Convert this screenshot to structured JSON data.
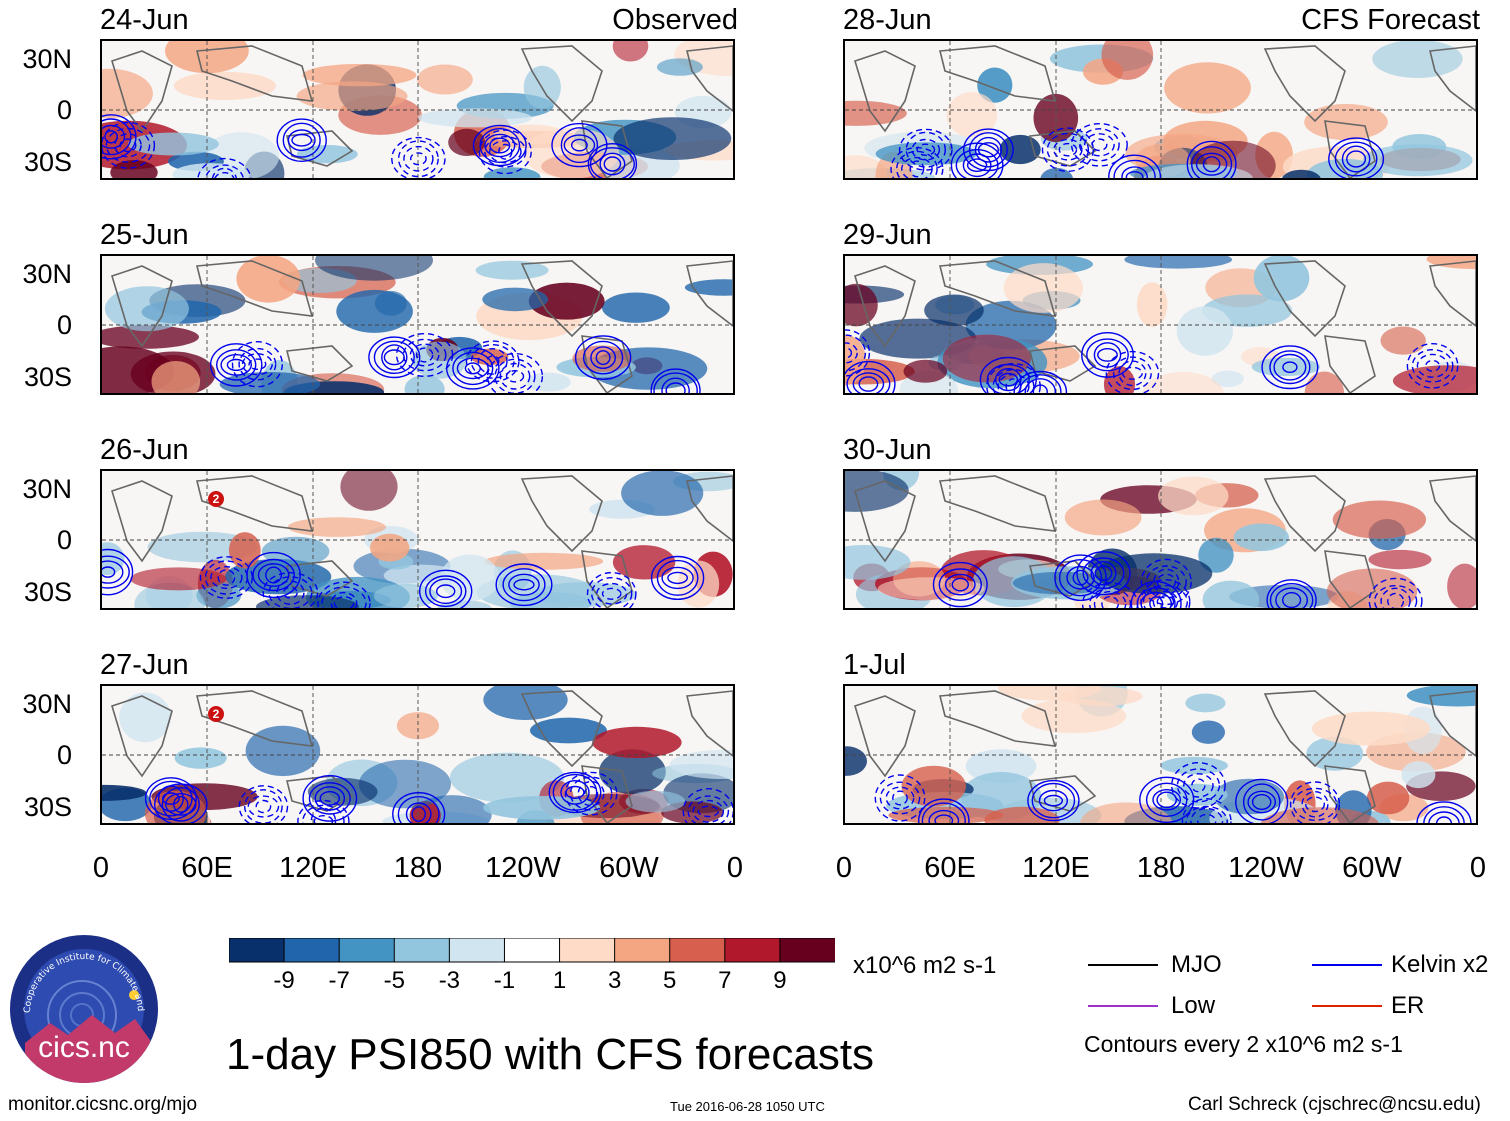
{
  "headers": {
    "observed": "Observed",
    "forecast": "CFS Forecast"
  },
  "panels": [
    {
      "date": "24-Jun"
    },
    {
      "date": "25-Jun"
    },
    {
      "date": "26-Jun"
    },
    {
      "date": "27-Jun"
    },
    {
      "date": "28-Jun"
    },
    {
      "date": "29-Jun"
    },
    {
      "date": "30-Jun"
    },
    {
      "date": "1-Jul"
    }
  ],
  "lat_labels": [
    "30N",
    "0",
    "30S"
  ],
  "lon_labels": [
    "0",
    "60E",
    "120E",
    "180",
    "120W",
    "60W",
    "0"
  ],
  "colorbar": {
    "colors": [
      "#08306b",
      "#2166ac",
      "#4393c3",
      "#92c5de",
      "#d1e5f0",
      "#ffffff",
      "#fddbc7",
      "#f4a582",
      "#d6604d",
      "#b2182b",
      "#67001f"
    ],
    "labels": [
      "-9",
      "-7",
      "-5",
      "-3",
      "-1",
      "1",
      "3",
      "5",
      "7",
      "9"
    ],
    "units": "x10^6 m2 s-1"
  },
  "legend": {
    "items": [
      {
        "label": "MJO",
        "color": "#000000"
      },
      {
        "label": "Kelvin x2",
        "color": "#0000ee"
      },
      {
        "label": "Low",
        "color": "#9933cc"
      },
      {
        "label": "ER",
        "color": "#dd2200"
      }
    ],
    "note": "Contours every 2 x10^6 m2 s-1"
  },
  "title": "1-day PSI850 with CFS forecasts",
  "logo_text": "cics.nc",
  "logo_ring_text": "Cooperative Institute for Climate and Satellites",
  "footer": {
    "url": "monitor.cicsnc.org/mjo",
    "timestamp": "Tue 2016-06-28 1050 UTC",
    "author": "Carl Schreck (cjschrec@ncsu.edu)"
  },
  "markers": [
    {
      "panel": 2,
      "label": "2"
    },
    {
      "panel": 3,
      "label": "2"
    }
  ]
}
